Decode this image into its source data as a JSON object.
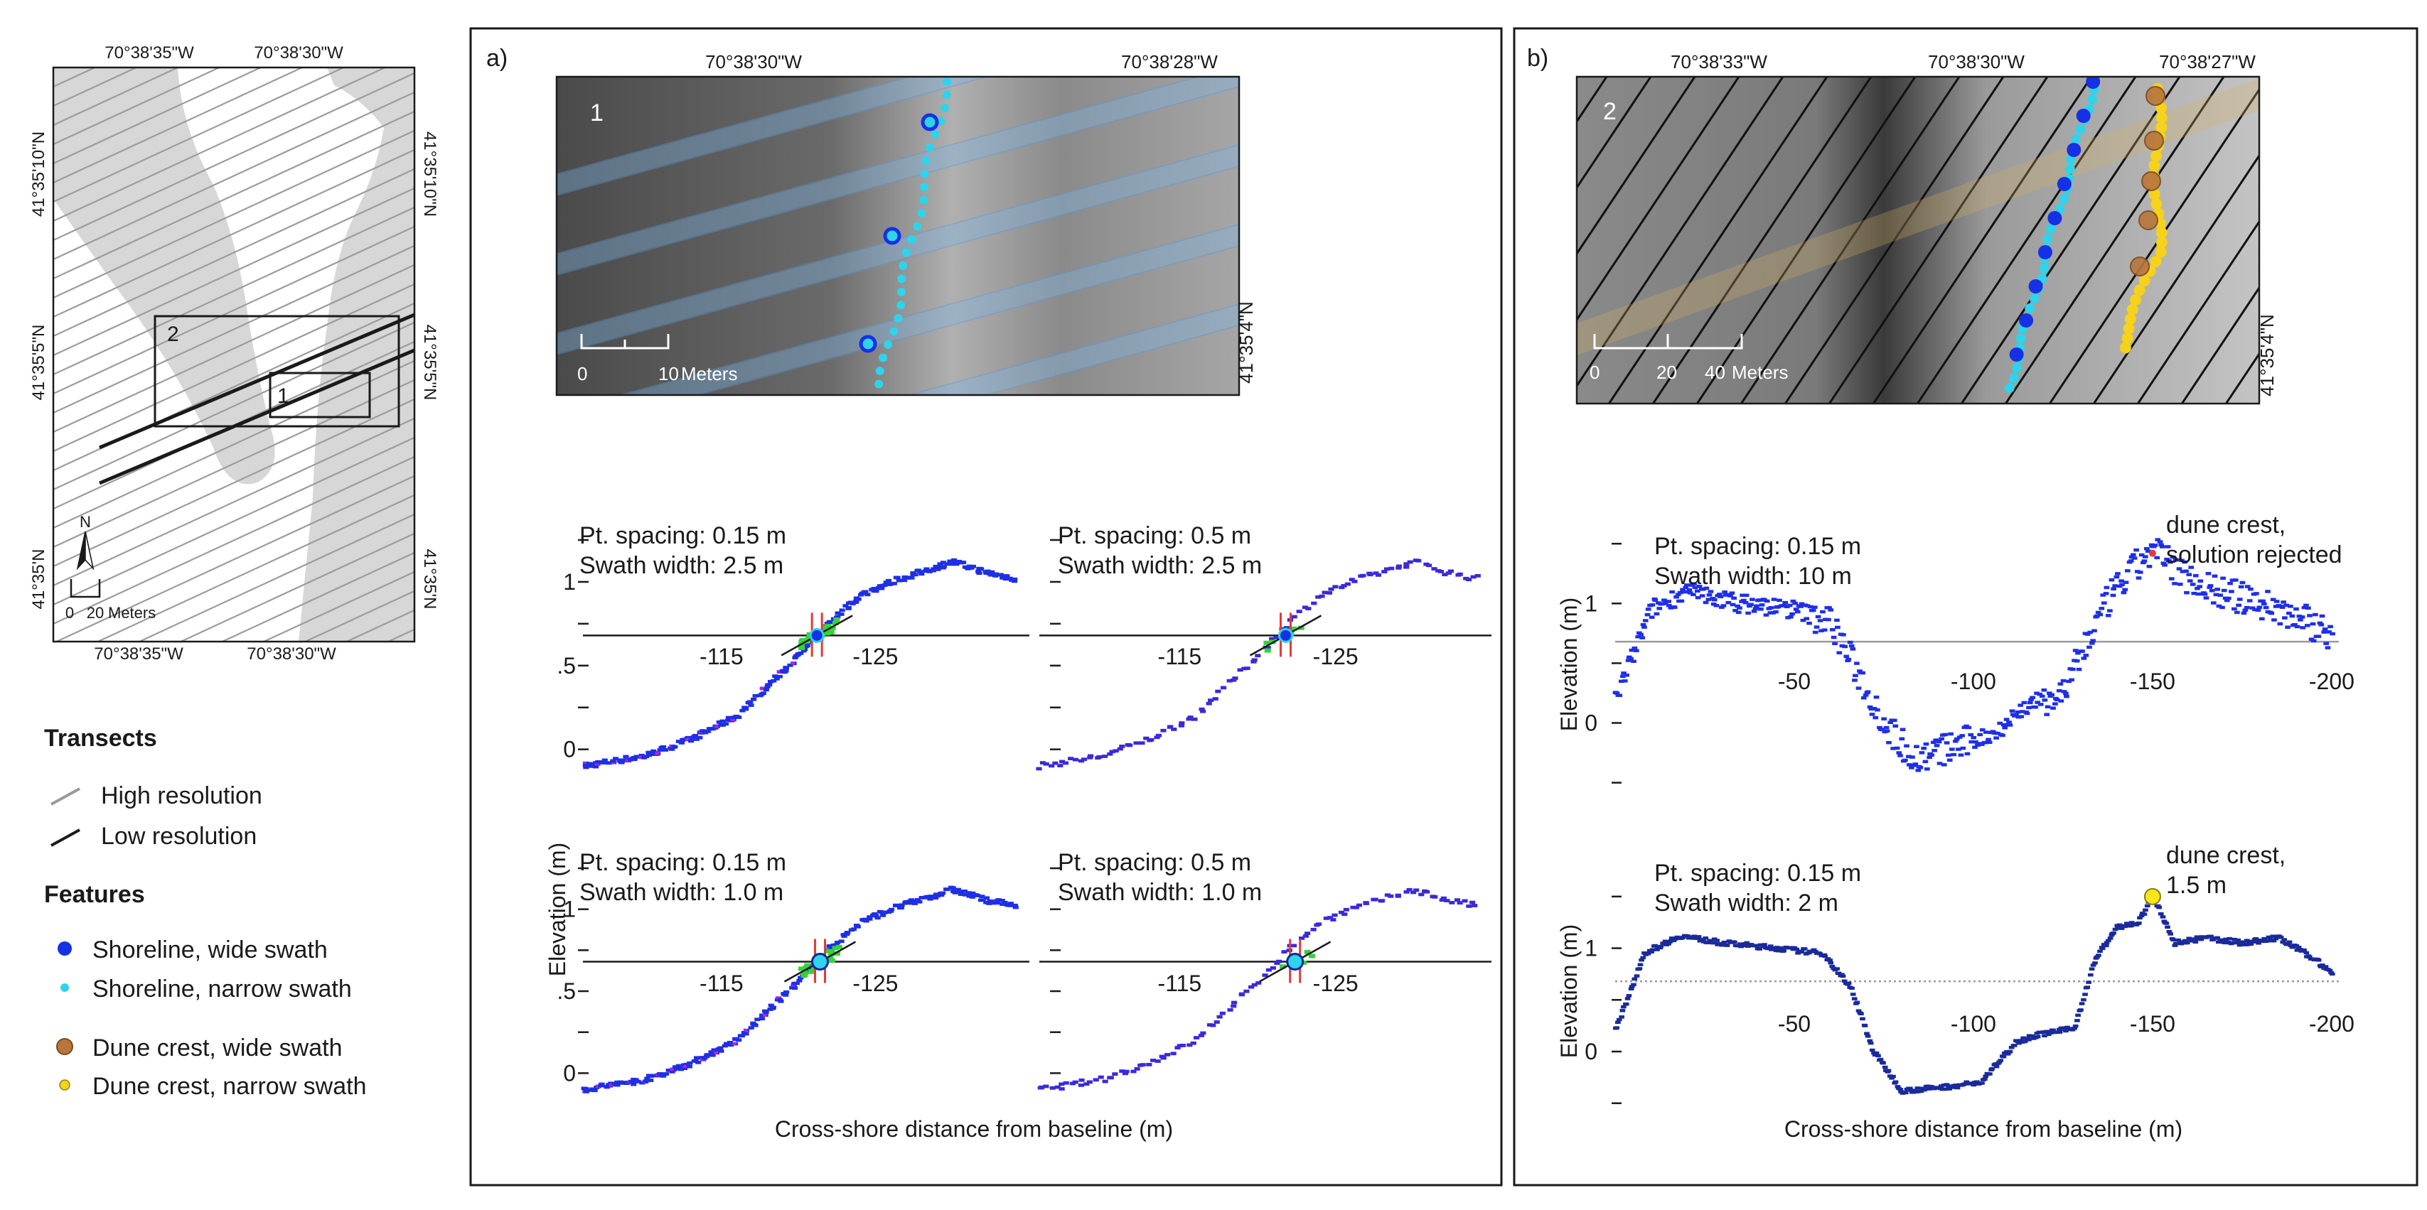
{
  "overview_map": {
    "top_lon_labels": [
      "70°38'35\"W",
      "70°38'30\"W"
    ],
    "bottom_lon_labels": [
      "70°38'35\"W",
      "70°38'30\"W"
    ],
    "left_lat_labels": [
      "41°35'10\"N",
      "41°35'5\"N",
      "41°35'N"
    ],
    "right_lat_labels": [
      "41°35'10\"N",
      "41°35'5\"N",
      "41°35'N"
    ],
    "box1_label": "1",
    "box2_label": "2",
    "north_label": "N",
    "scale_ticks": [
      "0",
      "20"
    ],
    "scale_unit": "Meters"
  },
  "legend": {
    "transects_title": "Transects",
    "transects": [
      {
        "label": "High resolution",
        "color": "#9a9a9a"
      },
      {
        "label": "Low resolution",
        "color": "#1a1a1a"
      }
    ],
    "features_title": "Features",
    "features": [
      {
        "label": "Shoreline, wide swath",
        "color": "#1531e6"
      },
      {
        "label": "Shoreline, narrow swath",
        "color": "#2fd3ea"
      },
      {
        "label": "Dune crest, wide swath",
        "color": "#b9763c"
      },
      {
        "label": "Dune crest, narrow swath",
        "color": "#f6d21a"
      }
    ]
  },
  "panel_a": {
    "label": "a)",
    "map": {
      "number": "1",
      "lon_labels": [
        "70°38'30\"W",
        "70°38'28\"W"
      ],
      "lat_label": "41°35'4\"N",
      "scale_ticks": [
        "0",
        "10"
      ],
      "scale_unit": "Meters"
    },
    "y_axis_label": "Elevation (m)",
    "x_axis_label": "Cross-shore distance from baseline (m)"
  },
  "panel_b": {
    "label": "b)",
    "map": {
      "number": "2",
      "lon_labels": [
        "70°38'33\"W",
        "70°38'30\"W",
        "70°38'27\"W"
      ],
      "lat_label": "41°35'4\"N",
      "scale_ticks": [
        "0",
        "20",
        "40"
      ],
      "scale_unit": "Meters"
    },
    "y_axis_label": "Elevation (m)",
    "x_axis_label": "Cross-shore distance from baseline (m)"
  },
  "chart_data": [
    {
      "id": "a1",
      "type": "scatter",
      "panel": "a",
      "annotation_lines": [
        "Pt. spacing: 0.15 m",
        "Swath width: 2.5 m"
      ],
      "x_tick_labels": [
        "-115",
        "-125"
      ],
      "y_tick_labels": [
        "1",
        ".5",
        "0"
      ],
      "xlim": [
        -106,
        -135
      ],
      "ylim": [
        -0.15,
        1.25
      ],
      "shoreline": {
        "x": -121.2,
        "y": 0.68,
        "type": "wide swath"
      },
      "profile": {
        "x": [
          -106,
          -110,
          -113,
          -116,
          -118,
          -120,
          -122,
          -124,
          -126,
          -128,
          -130,
          -132,
          -134
        ],
        "y": [
          -0.1,
          -0.04,
          0.06,
          0.2,
          0.38,
          0.56,
          0.76,
          0.92,
          1.0,
          1.06,
          1.12,
          1.06,
          1.02
        ]
      }
    },
    {
      "id": "a2",
      "type": "scatter",
      "panel": "a",
      "annotation_lines": [
        "Pt. spacing: 0.5 m",
        "Swath width: 2.5 m"
      ],
      "x_tick_labels": [
        "-115",
        "-125"
      ],
      "y_tick_labels": [],
      "xlim": [
        -106,
        -135
      ],
      "ylim": [
        -0.15,
        1.25
      ],
      "shoreline": {
        "x": -121.8,
        "y": 0.68,
        "type": "wide swath"
      },
      "profile": {
        "x": [
          -106,
          -110,
          -113,
          -116,
          -118,
          -120,
          -122,
          -124,
          -126,
          -128,
          -130,
          -132,
          -134
        ],
        "y": [
          -0.1,
          -0.04,
          0.06,
          0.2,
          0.38,
          0.56,
          0.76,
          0.92,
          1.0,
          1.06,
          1.12,
          1.06,
          1.02
        ]
      }
    },
    {
      "id": "a3",
      "type": "scatter",
      "panel": "a",
      "annotation_lines": [
        "Pt. spacing: 0.15 m",
        "Swath width: 1.0 m"
      ],
      "x_tick_labels": [
        "-115",
        "-125"
      ],
      "y_tick_labels": [
        "1",
        ".5",
        "0"
      ],
      "xlim": [
        -106,
        -135
      ],
      "ylim": [
        -0.15,
        1.25
      ],
      "shoreline": {
        "x": -121.4,
        "y": 0.68,
        "type": "narrow swath"
      },
      "profile": {
        "x": [
          -106,
          -110,
          -113,
          -116,
          -118,
          -120,
          -122,
          -124,
          -126,
          -128,
          -130,
          -132,
          -134
        ],
        "y": [
          -0.1,
          -0.04,
          0.06,
          0.2,
          0.38,
          0.56,
          0.76,
          0.92,
          1.0,
          1.06,
          1.12,
          1.06,
          1.02
        ]
      }
    },
    {
      "id": "a4",
      "type": "scatter",
      "panel": "a",
      "annotation_lines": [
        "Pt. spacing: 0.5 m",
        "Swath width: 1.0 m"
      ],
      "x_tick_labels": [
        "-115",
        "-125"
      ],
      "y_tick_labels": [],
      "xlim": [
        -106,
        -135
      ],
      "ylim": [
        -0.15,
        1.25
      ],
      "shoreline": {
        "x": -122.4,
        "y": 0.68,
        "type": "narrow swath"
      },
      "profile": {
        "x": [
          -106,
          -110,
          -113,
          -116,
          -118,
          -120,
          -122,
          -124,
          -126,
          -128,
          -130,
          -132,
          -134
        ],
        "y": [
          -0.1,
          -0.04,
          0.06,
          0.2,
          0.38,
          0.56,
          0.76,
          0.92,
          1.0,
          1.06,
          1.12,
          1.06,
          1.02
        ]
      }
    },
    {
      "id": "b1",
      "type": "scatter",
      "panel": "b",
      "annotation_lines": [
        "Pt. spacing: 0.15 m",
        "Swath width: 10 m"
      ],
      "callout_lines": [
        "dune crest,",
        "solution rejected"
      ],
      "x_tick_labels": [
        "-50",
        "-100",
        "-150",
        "-200"
      ],
      "y_tick_labels": [
        "1",
        "0"
      ],
      "xlim": [
        0,
        -202
      ],
      "ylim": [
        -0.55,
        1.65
      ],
      "dune_crest": {
        "x": -150,
        "y": 1.42,
        "type": "wide swath"
      },
      "profile": {
        "x": [
          0,
          -10,
          -20,
          -35,
          -50,
          -60,
          -68,
          -76,
          -84,
          -94,
          -105,
          -115,
          -125,
          -132,
          -138,
          -145,
          -150,
          -158,
          -168,
          -180,
          -190,
          -200
        ],
        "y": [
          0.2,
          0.95,
          1.1,
          1.0,
          0.95,
          0.85,
          0.4,
          -0.05,
          -0.3,
          -0.2,
          -0.1,
          0.15,
          0.25,
          0.7,
          1.05,
          1.3,
          1.45,
          1.25,
          1.1,
          1.0,
          0.9,
          0.75
        ]
      }
    },
    {
      "id": "b2",
      "type": "scatter",
      "panel": "b",
      "annotation_lines": [
        "Pt. spacing: 0.15 m",
        "Swath width: 2 m"
      ],
      "callout_lines": [
        "dune crest,",
        "1.5 m"
      ],
      "x_tick_labels": [
        "-50",
        "-100",
        "-150",
        "-200"
      ],
      "y_tick_labels": [
        "1",
        "0"
      ],
      "xlim": [
        0,
        -202
      ],
      "ylim": [
        -0.55,
        1.65
      ],
      "dune_crest": {
        "x": -150,
        "y": 1.5,
        "type": "narrow swath"
      },
      "profile": {
        "x": [
          0,
          -8,
          -18,
          -30,
          -45,
          -58,
          -66,
          -72,
          -80,
          -90,
          -102,
          -112,
          -120,
          -128,
          -134,
          -140,
          -146,
          -150,
          -156,
          -165,
          -175,
          -185,
          -195,
          -200
        ],
        "y": [
          0.2,
          0.95,
          1.12,
          1.05,
          1.0,
          0.95,
          0.6,
          0.0,
          -0.38,
          -0.35,
          -0.3,
          0.1,
          0.18,
          0.22,
          0.9,
          1.2,
          1.25,
          1.5,
          1.05,
          1.1,
          1.05,
          1.1,
          0.9,
          0.75
        ]
      }
    }
  ]
}
